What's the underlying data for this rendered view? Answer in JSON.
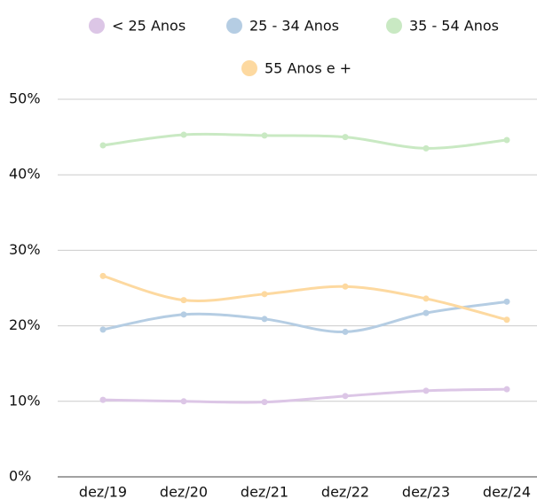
{
  "chart_data": {
    "type": "line",
    "categories": [
      "dez/19",
      "dez/20",
      "dez/21",
      "dez/22",
      "dez/23",
      "dez/24"
    ],
    "series": [
      {
        "name": "< 25 Anos",
        "color": "#dcc6e6",
        "values": [
          10.2,
          10.0,
          9.9,
          10.7,
          11.4,
          11.6
        ]
      },
      {
        "name": "25 - 34 Anos",
        "color": "#b5cde3",
        "values": [
          19.5,
          21.5,
          20.9,
          19.2,
          21.7,
          23.2
        ]
      },
      {
        "name": "35 - 54 Anos",
        "color": "#c9e9c3",
        "values": [
          43.9,
          45.3,
          45.2,
          45.0,
          43.5,
          44.6
        ]
      },
      {
        "name": "55 Anos e +",
        "color": "#fdd9a0",
        "values": [
          26.6,
          23.4,
          24.2,
          25.2,
          23.6,
          20.8
        ]
      }
    ],
    "ylim": [
      0,
      50
    ],
    "yticks": [
      {
        "value": 0,
        "label": "0%"
      },
      {
        "value": 10,
        "label": "10%"
      },
      {
        "value": 20,
        "label": "20%"
      },
      {
        "value": 30,
        "label": "30%"
      },
      {
        "value": 40,
        "label": "40%"
      },
      {
        "value": 50,
        "label": "50%"
      }
    ],
    "grid": true,
    "legend": "top"
  }
}
